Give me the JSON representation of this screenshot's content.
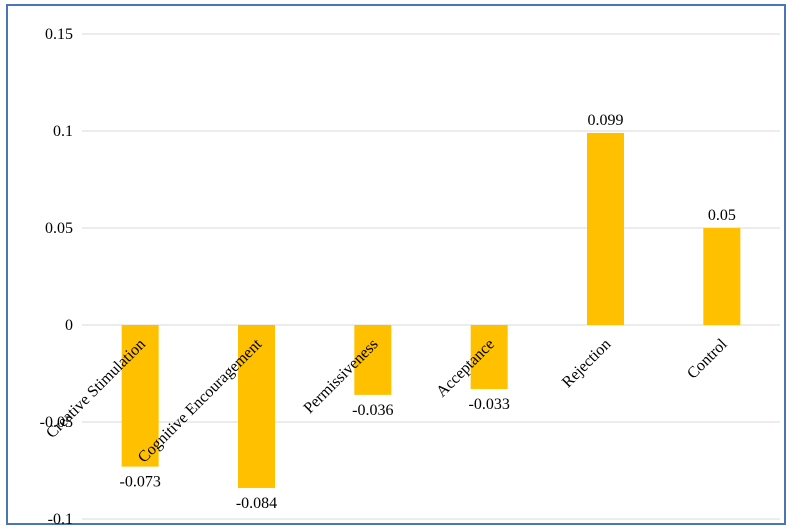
{
  "chart_data": {
    "type": "bar",
    "categories": [
      "Creative Stimulation",
      "Cognitive Encouragement",
      "Permissiveness",
      "Acceptance",
      "Rejection",
      "Control"
    ],
    "values": [
      -0.073,
      -0.084,
      -0.036,
      -0.033,
      0.099,
      0.05
    ],
    "data_labels": [
      "-0.073",
      "-0.084",
      "-0.036",
      "-0.033",
      "0.099",
      "0.05"
    ],
    "y_ticks": [
      "0.15",
      "0.1",
      "0.05",
      "0",
      "-0.05",
      "-0.1"
    ],
    "y_tick_values": [
      0.15,
      0.1,
      0.05,
      0,
      -0.05,
      -0.1
    ],
    "ylim": [
      -0.1,
      0.15
    ],
    "grid": true,
    "legend": "none",
    "bar_color": "#FFC000",
    "grid_color": "#d9d9d9",
    "border_color": "#4a76b8"
  }
}
